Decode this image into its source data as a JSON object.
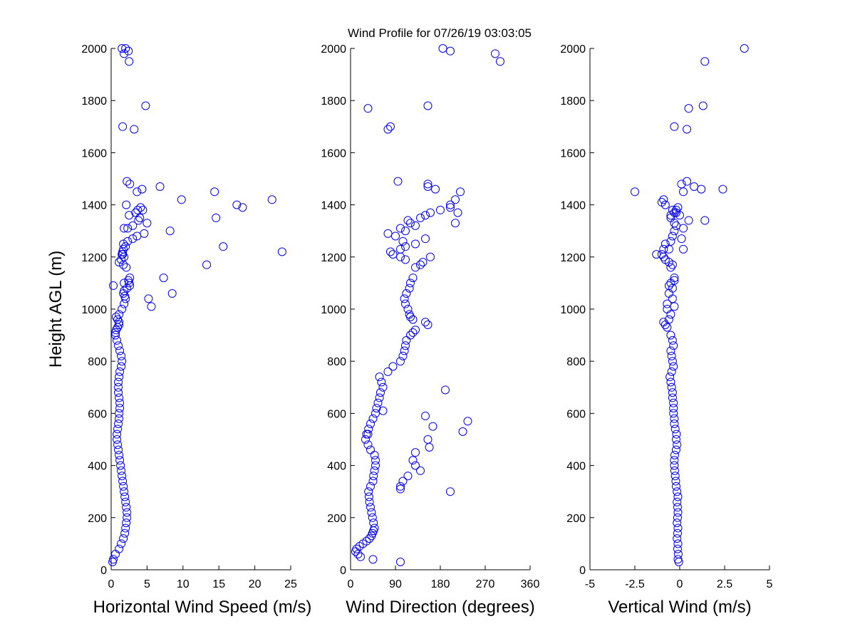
{
  "title": "Wind Profile for  07/26/19 03:03:05",
  "colors": {
    "marker": "#0000ff",
    "axes": "#000000",
    "background": "#ffffff"
  },
  "chart_data": [
    {
      "type": "scatter",
      "xlabel": "Horizontal Wind Speed (m/s)",
      "ylabel": "Height AGL (m)",
      "xlim": [
        0,
        25
      ],
      "ylim": [
        0,
        2000
      ],
      "xticks": [
        "0",
        "5",
        "10",
        "15",
        "20",
        "25"
      ],
      "yticks": [
        "0",
        "200",
        "400",
        "600",
        "800",
        "1000",
        "1200",
        "1400",
        "1600",
        "1800",
        "2000"
      ],
      "grid": false,
      "series": [
        {
          "x": [
            0.2,
            0.3,
            0.6,
            1.1,
            1.4,
            1.7,
            1.9,
            2.0,
            2.1,
            2.2,
            2.2,
            2.1,
            2.0,
            1.9,
            1.8,
            1.7,
            1.6,
            1.5,
            1.4,
            1.3,
            1.2,
            1.1,
            1.0,
            0.9,
            0.8,
            0.8,
            0.9,
            1.0,
            1.1,
            1.1,
            1.2,
            1.2,
            1.1,
            1.0,
            1.0,
            1.0,
            1.1,
            1.2,
            1.4,
            1.5,
            1.4,
            1.2,
            1.0,
            0.8,
            0.6,
            0.6,
            0.7,
            0.9,
            1.1,
            1.1,
            0.9,
            0.7,
            1.1,
            1.5,
            1.8,
            2.0,
            1.9,
            1.7,
            1.8,
            2.2,
            2.6,
            2.5,
            2.4,
            2.6,
            2.1,
            1.7,
            1.1,
            1.4,
            1.8,
            1.6,
            1.6,
            1.7,
            2.0,
            1.7,
            2.3,
            3.0,
            3.6,
            4.6,
            8.2,
            2.3,
            3.0,
            5.0,
            3.8,
            4.0,
            2.5,
            3.4,
            4.4,
            4.1,
            2.1,
            9.8,
            3.6,
            4.3,
            6.8,
            2.6,
            2.2,
            3.2,
            1.6,
            4.8,
            2.5,
            1.8,
            2.4,
            2.0,
            1.5,
            5.6,
            5.2,
            1.8,
            0.3,
            8.5,
            23.8,
            13.3,
            14.6,
            3.7,
            1.8,
            1.5,
            15.6,
            7.3,
            17.5,
            18.3,
            22.4,
            14.4
          ],
          "y": [
            30,
            40,
            60,
            80,
            100,
            120,
            140,
            160,
            180,
            200,
            220,
            240,
            260,
            280,
            300,
            320,
            340,
            360,
            380,
            400,
            420,
            440,
            460,
            480,
            500,
            520,
            540,
            560,
            580,
            600,
            620,
            640,
            660,
            680,
            700,
            720,
            740,
            760,
            780,
            800,
            820,
            840,
            860,
            880,
            900,
            910,
            920,
            930,
            940,
            950,
            960,
            970,
            980,
            1000,
            1020,
            1040,
            1050,
            1060,
            1070,
            1080,
            1090,
            1100,
            1110,
            1120,
            1160,
            1170,
            1180,
            1190,
            1200,
            1210,
            1220,
            1230,
            1240,
            1250,
            1260,
            1270,
            1280,
            1290,
            1300,
            1310,
            1320,
            1330,
            1340,
            1350,
            1360,
            1370,
            1380,
            1390,
            1400,
            1420,
            1450,
            1460,
            1470,
            1480,
            1490,
            1690,
            1700,
            1780,
            1950,
            1980,
            1990,
            2000,
            2000,
            1010,
            1040,
            1100,
            1090,
            1060,
            1220,
            1170,
            1350,
            1380,
            1310,
            1210,
            1240,
            1120,
            1400,
            1390,
            1420,
            1450
          ]
        }
      ]
    },
    {
      "type": "scatter",
      "xlabel": "Wind Direction (degrees)",
      "ylabel": "",
      "xlim": [
        0,
        360
      ],
      "ylim": [
        0,
        2000
      ],
      "xticks": [
        "0",
        "90",
        "180",
        "270",
        "360"
      ],
      "yticks": [
        "0",
        "200",
        "400",
        "600",
        "800",
        "1000",
        "1200",
        "1400",
        "1600",
        "1800",
        "2000"
      ],
      "grid": false,
      "series": [
        {
          "x": [
            45,
            100,
            20,
            15,
            10,
            12,
            18,
            25,
            32,
            38,
            42,
            44,
            46,
            48,
            46,
            44,
            42,
            40,
            38,
            37,
            36,
            40,
            45,
            46,
            48,
            50,
            50,
            48,
            40,
            35,
            30,
            32,
            36,
            40,
            45,
            50,
            52,
            55,
            58,
            60,
            65,
            62,
            58,
            75,
            85,
            100,
            105,
            108,
            110,
            112,
            120,
            125,
            130,
            155,
            150,
            125,
            120,
            118,
            115,
            110,
            108,
            112,
            118,
            120,
            125,
            130,
            140,
            145,
            110,
            100,
            85,
            80,
            100,
            110,
            130,
            105,
            150,
            90,
            75,
            110,
            100,
            130,
            120,
            115,
            140,
            150,
            160,
            180,
            200,
            210,
            220,
            170,
            155,
            155,
            95,
            80,
            75,
            35,
            155,
            300,
            290,
            200,
            185,
            190,
            150,
            65,
            235,
            165,
            225,
            35,
            155,
            158,
            130,
            125,
            130,
            140,
            115,
            105,
            100,
            100,
            200,
            210,
            215,
            200,
            160
          ],
          "y": [
            40,
            30,
            50,
            60,
            70,
            80,
            90,
            100,
            110,
            120,
            130,
            140,
            150,
            160,
            180,
            200,
            220,
            240,
            260,
            280,
            300,
            320,
            340,
            360,
            380,
            400,
            420,
            440,
            460,
            480,
            500,
            520,
            540,
            560,
            580,
            600,
            620,
            640,
            660,
            680,
            700,
            720,
            740,
            760,
            780,
            800,
            820,
            840,
            860,
            880,
            900,
            910,
            920,
            940,
            950,
            960,
            970,
            980,
            1000,
            1020,
            1040,
            1060,
            1080,
            1100,
            1120,
            1160,
            1170,
            1180,
            1190,
            1200,
            1210,
            1220,
            1230,
            1240,
            1250,
            1260,
            1270,
            1280,
            1290,
            1300,
            1310,
            1320,
            1330,
            1340,
            1350,
            1360,
            1370,
            1380,
            1400,
            1420,
            1450,
            1460,
            1470,
            1480,
            1490,
            1700,
            1690,
            1770,
            1780,
            1950,
            1980,
            1990,
            2000,
            690,
            590,
            610,
            570,
            550,
            530,
            520,
            500,
            470,
            450,
            420,
            400,
            380,
            360,
            340,
            320,
            310,
            300,
            1330,
            1370,
            1390,
            1200
          ]
        }
      ]
    },
    {
      "type": "scatter",
      "xlabel": "Vertical Wind (m/s)",
      "ylabel": "",
      "xlim": [
        -5,
        5
      ],
      "ylim": [
        0,
        2000
      ],
      "xticks": [
        "-5",
        "-2.5",
        "0",
        "2.5",
        "5"
      ],
      "yticks": [
        "0",
        "200",
        "400",
        "600",
        "800",
        "1000",
        "1200",
        "1400",
        "1600",
        "1800",
        "2000"
      ],
      "grid": false,
      "series": [
        {
          "x": [
            -0.05,
            -0.1,
            -0.08,
            -0.12,
            -0.1,
            -0.15,
            -0.12,
            -0.1,
            -0.15,
            -0.12,
            -0.1,
            -0.12,
            -0.15,
            -0.1,
            -0.15,
            -0.2,
            -0.22,
            -0.25,
            -0.28,
            -0.3,
            -0.3,
            -0.28,
            -0.2,
            -0.15,
            -0.2,
            -0.18,
            -0.25,
            -0.3,
            -0.3,
            -0.35,
            -0.35,
            -0.35,
            -0.4,
            -0.4,
            -0.45,
            -0.5,
            -0.55,
            -0.45,
            -0.35,
            -0.4,
            -0.45,
            -0.5,
            -0.35,
            -0.4,
            -0.5,
            -0.8,
            -0.7,
            -0.9,
            -0.6,
            -0.5,
            -0.7,
            -0.7,
            -0.4,
            -0.6,
            -0.3,
            -0.4,
            -0.6,
            -0.5,
            -0.3,
            -0.3,
            -0.5,
            -0.6,
            -0.8,
            -0.9,
            -1.0,
            -1.3,
            -0.9,
            -0.8,
            -0.5,
            -0.4,
            -0.3,
            -0.2,
            -0.3,
            -0.5,
            -0.5,
            -0.3,
            -0.2,
            -0.1,
            -0.8,
            -0.9,
            0.2,
            0.1,
            0.4,
            0.8,
            0.2,
            0.5,
            -0.6,
            -0.4,
            -2.5,
            1.2,
            -0.3,
            0.4,
            0.5,
            1.3,
            1.4,
            3.6,
            2.4,
            0.0,
            -0.2,
            0.1,
            0.2,
            -0.4,
            1.4,
            -1.0
          ],
          "y": [
            30,
            40,
            60,
            80,
            100,
            120,
            140,
            160,
            180,
            200,
            220,
            240,
            260,
            280,
            300,
            320,
            340,
            360,
            380,
            400,
            420,
            440,
            460,
            480,
            500,
            520,
            540,
            560,
            580,
            600,
            620,
            640,
            660,
            680,
            700,
            720,
            740,
            760,
            780,
            800,
            820,
            840,
            860,
            880,
            900,
            940,
            930,
            950,
            960,
            980,
            1000,
            1020,
            1040,
            1060,
            1010,
            1080,
            1090,
            1100,
            1110,
            1120,
            1160,
            1180,
            1190,
            1200,
            1210,
            1210,
            1230,
            1250,
            1260,
            1280,
            1300,
            1320,
            1330,
            1350,
            1360,
            1370,
            1380,
            1390,
            1400,
            1420,
            1450,
            1480,
            1490,
            1470,
            1310,
            1340,
            1230,
            1170,
            1450,
            1460,
            1700,
            1690,
            1770,
            1780,
            1950,
            2000,
            1460,
            1360,
            1370,
            1270,
            1230,
            1380,
            1340,
            1410
          ]
        }
      ]
    }
  ]
}
